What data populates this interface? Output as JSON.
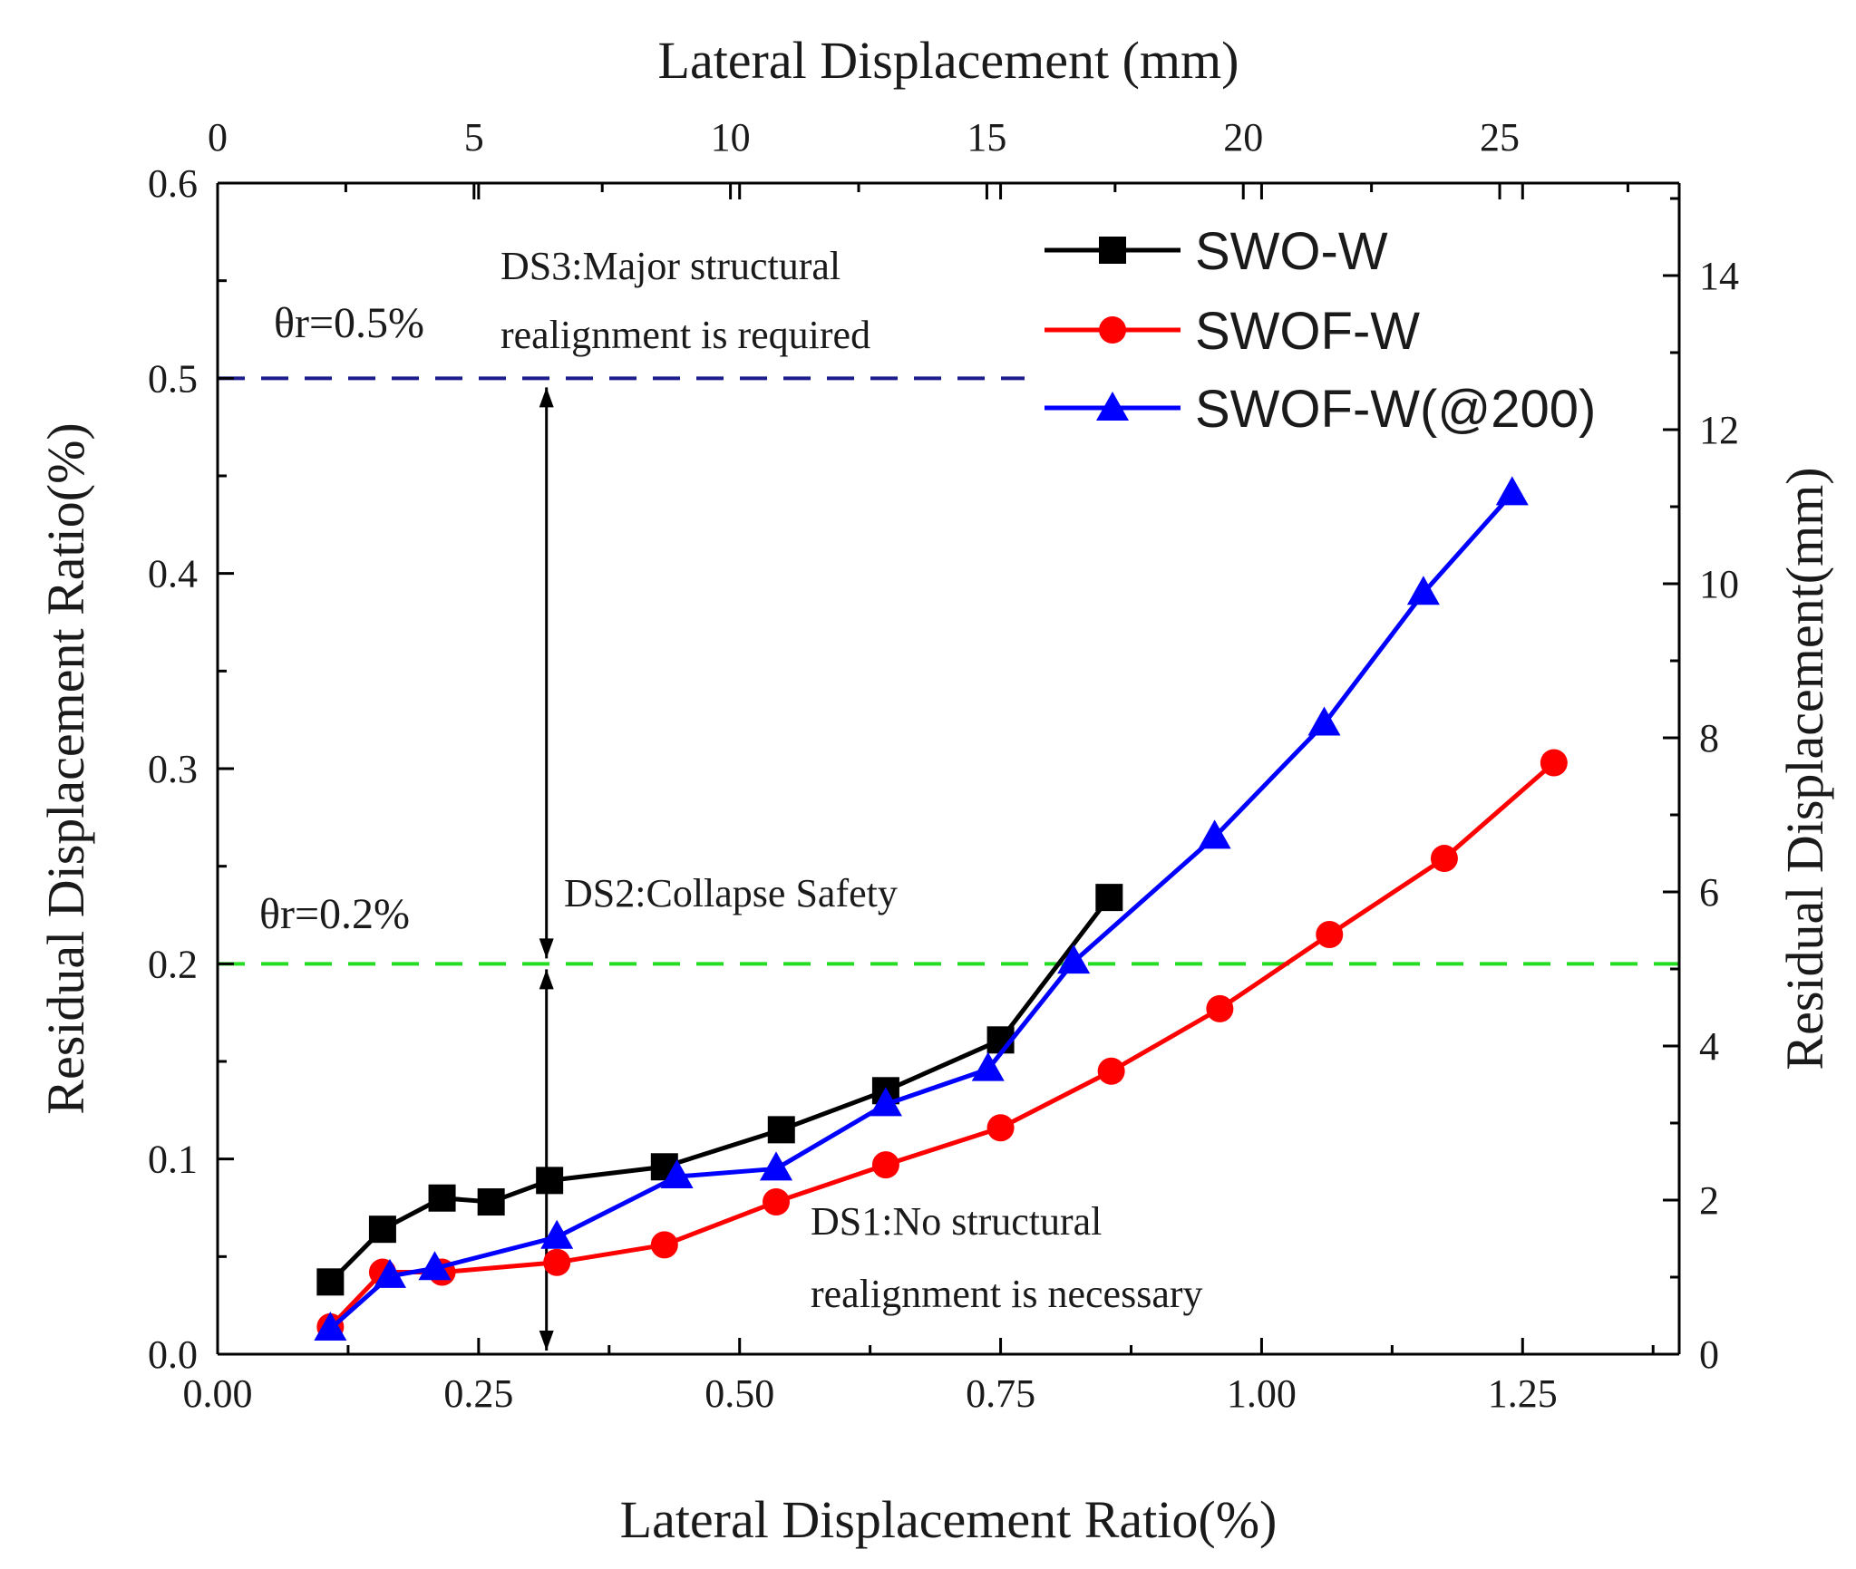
{
  "chart_data": {
    "type": "line",
    "title": "",
    "xlabel": "Lateral Displacement Ratio(%)",
    "ylabel": "Residual Displacement Ratio(%)",
    "x2label": "Lateral Displacement (mm)",
    "y2label": "Residual Displacement(mm)",
    "xlim": [
      0,
      1.4
    ],
    "ylim": [
      0,
      0.6
    ],
    "x2lim": [
      0,
      28.5
    ],
    "y2lim": [
      0,
      15.2
    ],
    "xticks": [
      "0.00",
      "0.25",
      "0.50",
      "0.75",
      "1.00",
      "1.25"
    ],
    "yticks": [
      "0.0",
      "0.1",
      "0.2",
      "0.3",
      "0.4",
      "0.5",
      "0.6"
    ],
    "x2ticks": [
      "0",
      "5",
      "10",
      "15",
      "20",
      "25"
    ],
    "y2ticks": [
      "0",
      "2",
      "4",
      "6",
      "8",
      "10",
      "12",
      "14"
    ],
    "legend_position": "top-right",
    "series": [
      {
        "name": "SWO-W",
        "color": "#000000",
        "marker": "square",
        "x": [
          0.108,
          0.158,
          0.215,
          0.262,
          0.318,
          0.428,
          0.54,
          0.64,
          0.75,
          0.854
        ],
        "y": [
          0.037,
          0.064,
          0.08,
          0.078,
          0.089,
          0.096,
          0.115,
          0.135,
          0.161,
          0.234
        ]
      },
      {
        "name": "SWOF-W",
        "color": "#ff0000",
        "marker": "circle",
        "x": [
          0.108,
          0.158,
          0.215,
          0.325,
          0.428,
          0.535,
          0.64,
          0.75,
          0.856,
          0.96,
          1.065,
          1.175,
          1.28
        ],
        "y": [
          0.014,
          0.042,
          0.042,
          0.047,
          0.056,
          0.078,
          0.097,
          0.116,
          0.145,
          0.177,
          0.215,
          0.254,
          0.303
        ]
      },
      {
        "name": "SWOF-W(@200)",
        "color": "#0000ff",
        "marker": "triangle",
        "x": [
          0.108,
          0.165,
          0.208,
          0.325,
          0.44,
          0.535,
          0.64,
          0.738,
          0.82,
          0.955,
          1.06,
          1.155,
          1.24
        ],
        "y": [
          0.013,
          0.04,
          0.044,
          0.06,
          0.091,
          0.095,
          0.128,
          0.146,
          0.201,
          0.265,
          0.323,
          0.39,
          0.441
        ]
      }
    ],
    "thresholds": [
      {
        "label": "θr=0.5%",
        "y": 0.5,
        "color": "#1c1c8c"
      },
      {
        "label": "θr=0.2%",
        "y": 0.2,
        "color": "#22dd22"
      }
    ],
    "annotations": {
      "ds3_line1": "DS3:Major structural",
      "ds3_line2": "realignment is required",
      "ds2": "DS2:Collapse Safety",
      "ds1_line1": "DS1:No structural",
      "ds1_line2": "realignment is necessary"
    },
    "arrow_x": 0.315
  }
}
